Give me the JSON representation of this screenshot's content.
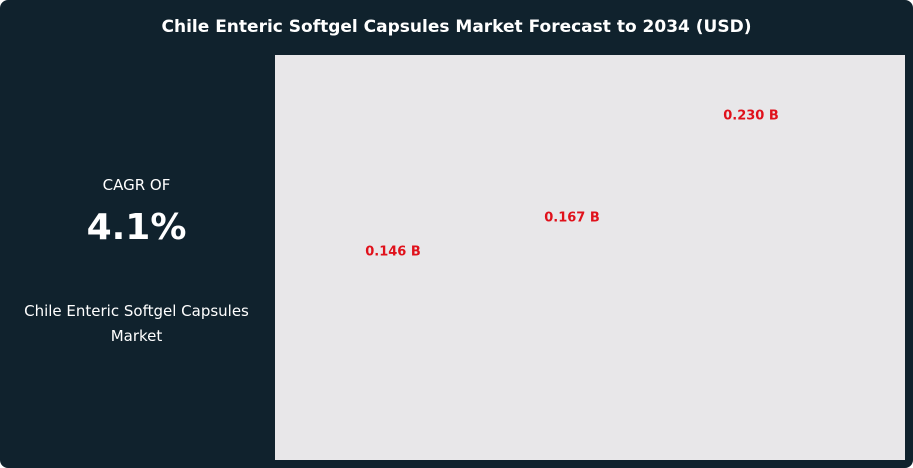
{
  "chart_data": {
    "type": "bar",
    "title": "Chile Enteric Softgel Capsules Market Forecast to 2034 (USD)",
    "values": [
      0.146,
      0.167,
      0.23
    ],
    "value_labels": [
      "0.146 B",
      "0.167 B",
      "0.230 B"
    ],
    "color": "#e0111b"
  },
  "summary": {
    "cagr_label": "CAGR OF",
    "cagr_value": "4.1%",
    "market_name": "Chile Enteric Softgel Capsules Market"
  }
}
